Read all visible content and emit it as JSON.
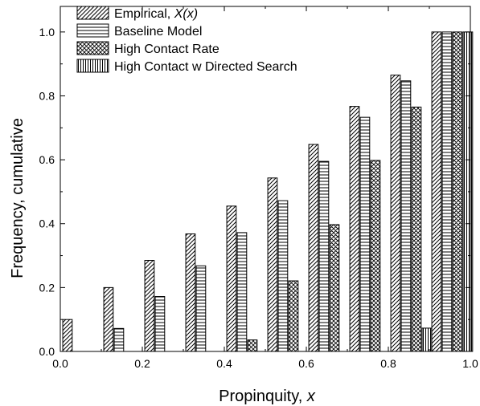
{
  "chart_data": {
    "type": "bar",
    "xlabel": "Propinquity, ",
    "xlabel_var": "x",
    "ylabel": "Frequency, cumulative",
    "xlim": [
      0.0,
      1.0
    ],
    "ylim": [
      0.0,
      1.08
    ],
    "xticks": [
      "0.0",
      "0.2",
      "0.4",
      "0.6",
      "0.8",
      "1.0"
    ],
    "yticks": [
      "0.0",
      "0.2",
      "0.4",
      "0.6",
      "0.8",
      "1.0"
    ],
    "x": [
      0.0,
      0.1,
      0.2,
      0.3,
      0.4,
      0.5,
      0.6,
      0.7,
      0.8,
      0.9
    ],
    "legend_position": "top-left",
    "series": [
      {
        "name": "Empirical, ",
        "name_italic": "X(x)",
        "pattern": "diagonal-hatch",
        "values": [
          0.1,
          0.2,
          0.285,
          0.368,
          0.455,
          0.543,
          0.648,
          0.767,
          0.865,
          1.0
        ]
      },
      {
        "name": "Baseline Model",
        "pattern": "horizontal-lines",
        "values": [
          0,
          0.072,
          0.172,
          0.268,
          0.372,
          0.472,
          0.595,
          0.733,
          0.847,
          1.0
        ]
      },
      {
        "name": "High Contact Rate",
        "pattern": "cross-hatch",
        "values": [
          0,
          0,
          0,
          0,
          0.036,
          0.221,
          0.397,
          0.598,
          0.765,
          1.0
        ]
      },
      {
        "name": "High Contact w Directed Search",
        "pattern": "vertical-lines",
        "values": [
          0,
          0,
          0,
          0,
          0,
          0,
          0,
          0,
          0.073,
          1.0
        ]
      }
    ]
  }
}
